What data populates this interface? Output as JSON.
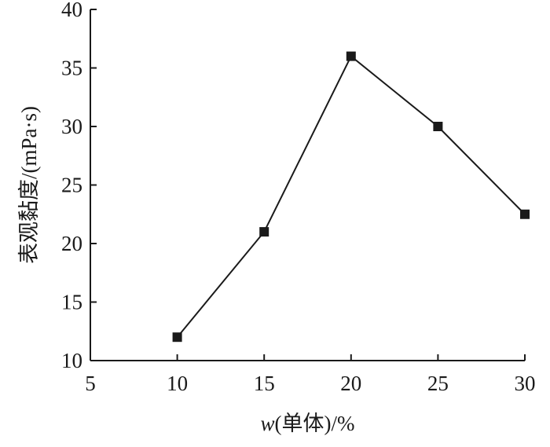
{
  "chart_data": {
    "type": "line",
    "title": "",
    "xlabel": "w(单体)/%",
    "xlabel_parts": {
      "symbol": "w",
      "rest": "(单体)/%"
    },
    "ylabel": "表观黏度/(mPa·s)",
    "xlim": [
      5,
      30
    ],
    "ylim": [
      10,
      40
    ],
    "x_ticks": [
      5,
      10,
      15,
      20,
      25,
      30
    ],
    "y_ticks": [
      10,
      15,
      20,
      25,
      30,
      35,
      40
    ],
    "grid": false,
    "marker": "square",
    "series": [
      {
        "x": [
          10,
          15,
          20,
          25,
          30
        ],
        "values": [
          12,
          21,
          36,
          30,
          22.5
        ]
      }
    ]
  }
}
